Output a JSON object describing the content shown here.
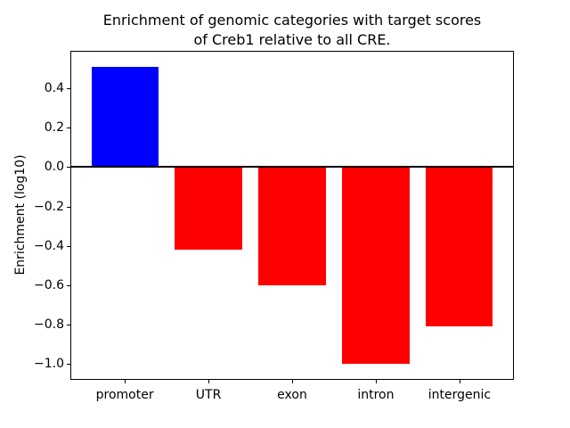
{
  "chart_data": {
    "type": "bar",
    "title": "Enrichment of genomic categories with target scores\nof Creb1 relative to all CRE.",
    "ylabel": "Enrichment (log10)",
    "xlabel": "",
    "categories": [
      "promoter",
      "UTR",
      "exon",
      "intron",
      "intergenic"
    ],
    "values": [
      0.51,
      -0.42,
      -0.6,
      -1.0,
      -0.81
    ],
    "bar_colors": [
      "#0000ff",
      "#ff0000",
      "#ff0000",
      "#ff0000",
      "#ff0000"
    ],
    "positive_color": "#0000ff",
    "negative_color": "#ff0000",
    "yticks": [
      0.4,
      0.2,
      0.0,
      -0.2,
      -0.4,
      -0.6,
      -0.8,
      -1.0
    ],
    "ylim": [
      -1.075,
      0.585
    ],
    "xlim": [
      -0.64,
      4.64
    ],
    "bar_width": 0.8,
    "zero_line": {
      "y": 0.0,
      "color": "#000000"
    },
    "grid": false,
    "legend": false,
    "axis_color": "#000000",
    "background": "#ffffff"
  }
}
